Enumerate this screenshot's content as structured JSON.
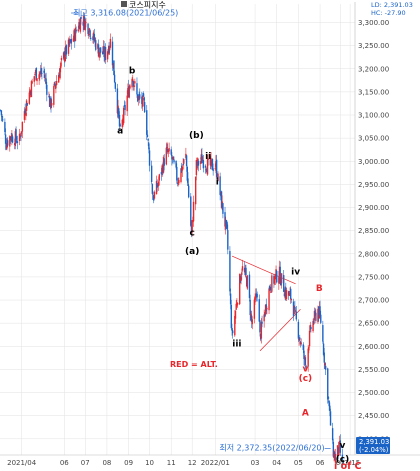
{
  "chart_data": {
    "type": "candlestick",
    "title": "코스피지수",
    "header_values": {
      "line1": "LD: 2,391.03",
      "line2": "HC: -27.90"
    },
    "colors": {
      "up": "#e8262b",
      "down": "#1a63c6",
      "grid": "#e2e2e2",
      "annotation": "#2c6fd6",
      "trendline": "#e8262b",
      "alt_label": "#e8262b"
    },
    "ylim": [
      2365,
      3340
    ],
    "yticks": [
      "2,400.00",
      "2,450.00",
      "2,500.00",
      "2,550.00",
      "2,600.00",
      "2,650.00",
      "2,700.00",
      "2,750.00",
      "2,800.00",
      "2,850.00",
      "2,900.00",
      "2,950.00",
      "3,000.00",
      "3,050.00",
      "3,100.00",
      "3,150.00",
      "3,200.00",
      "3,250.00",
      "3,300.00"
    ],
    "xticks": [
      "2021/04",
      "06",
      "07",
      "08",
      "09",
      "10",
      "11",
      "12",
      "2022/01",
      "03",
      "04",
      "05",
      "06",
      "07",
      "07/15"
    ],
    "xlim": [
      "2021-03-01",
      "2022-07-22"
    ],
    "path": [
      [
        "2021-03-02",
        3110
      ],
      [
        "2021-03-10",
        3040
      ],
      [
        "2021-03-16",
        3055
      ],
      [
        "2021-03-29",
        3045
      ],
      [
        "2021-04-05",
        3110
      ],
      [
        "2021-04-20",
        3190
      ],
      [
        "2021-05-03",
        3190
      ],
      [
        "2021-05-12",
        3120
      ],
      [
        "2021-05-20",
        3170
      ],
      [
        "2021-06-01",
        3230
      ],
      [
        "2021-06-15",
        3270
      ],
      [
        "2021-06-25",
        3310
      ],
      [
        "2021-07-06",
        3290
      ],
      [
        "2021-07-20",
        3240
      ],
      [
        "2021-07-30",
        3230
      ],
      [
        "2021-08-06",
        3260
      ],
      [
        "2021-08-12",
        3180
      ],
      [
        "2021-08-20",
        3060
      ],
      [
        "2021-08-30",
        3140
      ],
      [
        "2021-09-06",
        3190
      ],
      [
        "2021-09-13",
        3140
      ],
      [
        "2021-09-24",
        3120
      ],
      [
        "2021-10-06",
        2920
      ],
      [
        "2021-10-13",
        2950
      ],
      [
        "2021-10-25",
        3020
      ],
      [
        "2021-11-01",
        3010
      ],
      [
        "2021-11-10",
        2960
      ],
      [
        "2021-11-22",
        3010
      ],
      [
        "2021-11-30",
        2840
      ],
      [
        "2021-12-07",
        2990
      ],
      [
        "2021-12-15",
        3005
      ],
      [
        "2021-12-24",
        2990
      ],
      [
        "2022-01-04",
        2990
      ],
      [
        "2022-01-11",
        2920
      ],
      [
        "2022-01-20",
        2840
      ],
      [
        "2022-01-27",
        2620
      ],
      [
        "2022-02-03",
        2700
      ],
      [
        "2022-02-10",
        2770
      ],
      [
        "2022-02-18",
        2740
      ],
      [
        "2022-02-24",
        2650
      ],
      [
        "2022-03-04",
        2720
      ],
      [
        "2022-03-08",
        2620
      ],
      [
        "2022-03-22",
        2730
      ],
      [
        "2022-04-04",
        2760
      ],
      [
        "2022-04-14",
        2715
      ],
      [
        "2022-04-22",
        2705
      ],
      [
        "2022-04-28",
        2660
      ],
      [
        "2022-05-12",
        2560
      ],
      [
        "2022-05-20",
        2640
      ],
      [
        "2022-05-30",
        2680
      ],
      [
        "2022-06-03",
        2655
      ],
      [
        "2022-06-13",
        2500
      ],
      [
        "2022-06-20",
        2380
      ],
      [
        "2022-06-23",
        2360
      ],
      [
        "2022-06-30",
        2380
      ],
      [
        "2022-07-04",
        2340
      ]
    ],
    "annotations": {
      "high": {
        "label": "최고 3,316.08(2021/06/25)",
        "date": "2021-06-25",
        "value": 3316.08
      },
      "low": {
        "label": "최저 2,372.35(2022/06/20)",
        "date": "2022-06-20",
        "value": 2372.35
      },
      "last_value": "2,391.03",
      "last_change": "(-2.04%)",
      "waves": [
        {
          "label": "b",
          "date": "2021-09-06",
          "value": 3190
        },
        {
          "label": "a",
          "date": "2021-08-20",
          "value": 3060
        },
        {
          "label": "(b)",
          "date": "2021-12-07",
          "value": 3050
        },
        {
          "label": "ii",
          "date": "2021-12-24",
          "value": 3005
        },
        {
          "label": "i",
          "date": "2022-01-06",
          "value": 2950
        },
        {
          "label": "c",
          "date": "2021-12-01",
          "value": 2840
        },
        {
          "label": "(a)",
          "date": "2021-12-01",
          "value": 2800
        },
        {
          "label": "iii",
          "date": "2022-02-03",
          "value": 2600
        },
        {
          "label": "iv",
          "date": "2022-04-28",
          "value": 2755
        },
        {
          "label": "v",
          "date": "2022-07-04",
          "value": 2380
        },
        {
          "label": "(c)",
          "date": "2022-07-04",
          "value": 2350
        }
      ],
      "alt_waves": [
        {
          "label": "B",
          "date": "2022-06-01",
          "value": 2720
        },
        {
          "label": "v",
          "date": "2022-05-12",
          "value": 2545
        },
        {
          "label": "(c)",
          "date": "2022-05-12",
          "value": 2525
        },
        {
          "label": "A",
          "date": "2022-05-12",
          "value": 2450
        }
      ],
      "alt_note": "RED = ALT.",
      "bottom_note": "i of C",
      "trendlines": [
        [
          [
            "2022-01-27",
            2795
          ],
          [
            "2022-04-28",
            2735
          ]
        ],
        [
          [
            "2022-03-08",
            2590
          ],
          [
            "2022-05-05",
            2680
          ]
        ]
      ]
    }
  }
}
